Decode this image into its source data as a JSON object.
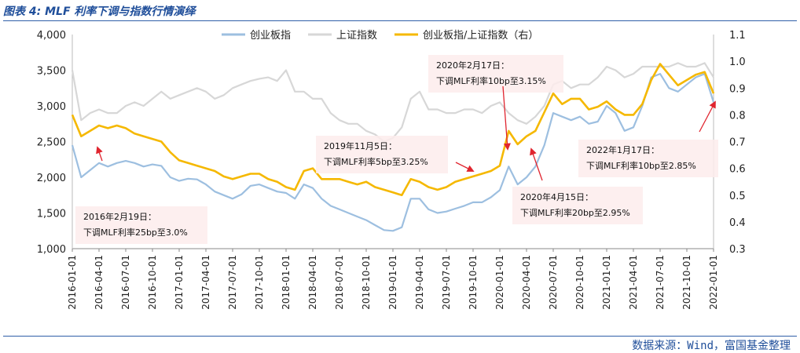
{
  "caption": "图表 4: MLF 利率下调与指数行情演绎",
  "source": "数据来源：Wind，富国基金整理",
  "colors": {
    "cyb": "#9dbfe0",
    "sh": "#d7d7d7",
    "ratio": "#f5b800",
    "arrow": "#e0252f",
    "rule": "#2f5fa8"
  },
  "chart_data": {
    "type": "line",
    "title": "",
    "xlabel": "",
    "ylabel": "",
    "ylim": [
      1000,
      4000
    ],
    "y2lim": [
      0.3,
      1.1
    ],
    "yticks": [
      "1,000",
      "1,500",
      "2,000",
      "2,500",
      "3,000",
      "3,500",
      "4,000"
    ],
    "y2ticks": [
      "0.3",
      "0.4",
      "0.5",
      "0.6",
      "0.7",
      "0.8",
      "0.9",
      "1.0",
      "1.1"
    ],
    "x_ticks": [
      "2016-01-01",
      "2016-04-01",
      "2016-07-01",
      "2016-10-01",
      "2017-01-01",
      "2017-04-01",
      "2017-07-01",
      "2017-10-01",
      "2018-01-01",
      "2018-04-01",
      "2018-07-01",
      "2018-10-01",
      "2019-01-01",
      "2019-04-01",
      "2019-07-01",
      "2019-10-01",
      "2020-01-01",
      "2020-04-01",
      "2020-07-01",
      "2020-10-01",
      "2021-01-01",
      "2021-04-01",
      "2021-07-01",
      "2021-10-01",
      "2022-01-01"
    ],
    "x": [
      "2016-01",
      "2016-02",
      "2016-03",
      "2016-04",
      "2016-05",
      "2016-06",
      "2016-07",
      "2016-08",
      "2016-09",
      "2016-10",
      "2016-11",
      "2016-12",
      "2017-01",
      "2017-02",
      "2017-03",
      "2017-04",
      "2017-05",
      "2017-06",
      "2017-07",
      "2017-08",
      "2017-09",
      "2017-10",
      "2017-11",
      "2017-12",
      "2018-01",
      "2018-02",
      "2018-03",
      "2018-04",
      "2018-05",
      "2018-06",
      "2018-07",
      "2018-08",
      "2018-09",
      "2018-10",
      "2018-11",
      "2018-12",
      "2019-01",
      "2019-02",
      "2019-03",
      "2019-04",
      "2019-05",
      "2019-06",
      "2019-07",
      "2019-08",
      "2019-09",
      "2019-10",
      "2019-11",
      "2019-12",
      "2020-01",
      "2020-02",
      "2020-03",
      "2020-04",
      "2020-05",
      "2020-06",
      "2020-07",
      "2020-08",
      "2020-09",
      "2020-10",
      "2020-11",
      "2020-12",
      "2021-01",
      "2021-02",
      "2021-03",
      "2021-04",
      "2021-05",
      "2021-06",
      "2021-07",
      "2021-08",
      "2021-09",
      "2021-10",
      "2021-11",
      "2021-12",
      "2022-01"
    ],
    "series": [
      {
        "name": "创业板指",
        "axis": "left",
        "values": [
          2450,
          2000,
          2100,
          2200,
          2150,
          2200,
          2230,
          2200,
          2150,
          2180,
          2160,
          2000,
          1950,
          1980,
          1970,
          1900,
          1800,
          1750,
          1700,
          1760,
          1880,
          1900,
          1850,
          1800,
          1780,
          1700,
          1900,
          1850,
          1700,
          1600,
          1550,
          1500,
          1450,
          1400,
          1330,
          1260,
          1250,
          1300,
          1700,
          1700,
          1550,
          1500,
          1520,
          1560,
          1600,
          1650,
          1650,
          1720,
          1820,
          2150,
          1900,
          2000,
          2150,
          2450,
          2900,
          2850,
          2800,
          2850,
          2750,
          2780,
          3000,
          2900,
          2650,
          2700,
          3000,
          3400,
          3450,
          3250,
          3200,
          3300,
          3400,
          3450,
          3050
        ]
      },
      {
        "name": "上证指数",
        "axis": "left",
        "values": [
          3500,
          2800,
          2900,
          2950,
          2900,
          2900,
          3000,
          3050,
          3000,
          3100,
          3200,
          3100,
          3150,
          3200,
          3250,
          3200,
          3100,
          3150,
          3250,
          3300,
          3350,
          3380,
          3400,
          3350,
          3500,
          3200,
          3200,
          3100,
          3100,
          2900,
          2800,
          2750,
          2750,
          2650,
          2600,
          2500,
          2550,
          2700,
          3100,
          3200,
          2950,
          2950,
          2900,
          2900,
          2950,
          2950,
          2900,
          3000,
          3050,
          2900,
          2800,
          2750,
          2850,
          3000,
          3300,
          3350,
          3250,
          3300,
          3300,
          3400,
          3550,
          3500,
          3400,
          3450,
          3550,
          3550,
          3550,
          3550,
          3600,
          3550,
          3550,
          3600,
          3400
        ]
      },
      {
        "name": "创业板指/上证指数（右）",
        "axis": "right",
        "values": [
          0.8,
          0.72,
          0.74,
          0.76,
          0.75,
          0.76,
          0.75,
          0.73,
          0.72,
          0.71,
          0.7,
          0.66,
          0.63,
          0.62,
          0.61,
          0.6,
          0.59,
          0.57,
          0.56,
          0.57,
          0.58,
          0.58,
          0.56,
          0.55,
          0.53,
          0.52,
          0.59,
          0.6,
          0.56,
          0.56,
          0.56,
          0.55,
          0.54,
          0.55,
          0.53,
          0.52,
          0.51,
          0.5,
          0.56,
          0.55,
          0.53,
          0.52,
          0.53,
          0.55,
          0.56,
          0.57,
          0.58,
          0.59,
          0.61,
          0.74,
          0.69,
          0.72,
          0.74,
          0.81,
          0.88,
          0.84,
          0.86,
          0.86,
          0.82,
          0.83,
          0.85,
          0.82,
          0.8,
          0.8,
          0.84,
          0.93,
          0.99,
          0.95,
          0.91,
          0.93,
          0.95,
          0.96,
          0.88
        ]
      }
    ],
    "legend_position": "top",
    "annotations": [
      {
        "id": "a1",
        "line1": "2016年2月19日：",
        "line2": "下调MLF利率25bp至3.0%",
        "at": "2016-02"
      },
      {
        "id": "a2",
        "line1": "2019年11月5日：",
        "line2": "下调MLF利率5bp至3.25%",
        "at": "2019-11"
      },
      {
        "id": "a3",
        "line1": "2020年2月17日：",
        "line2": "下调MLF利率10bp至3.15%",
        "at": "2020-02"
      },
      {
        "id": "a4",
        "line1": "2020年4月15日：",
        "line2": "下调MLF利率20bp至2.95%",
        "at": "2020-04"
      },
      {
        "id": "a5",
        "line1": "2022年1月17日：",
        "line2": "下调MLF利率10bp至2.85%",
        "at": "2022-01"
      }
    ]
  }
}
